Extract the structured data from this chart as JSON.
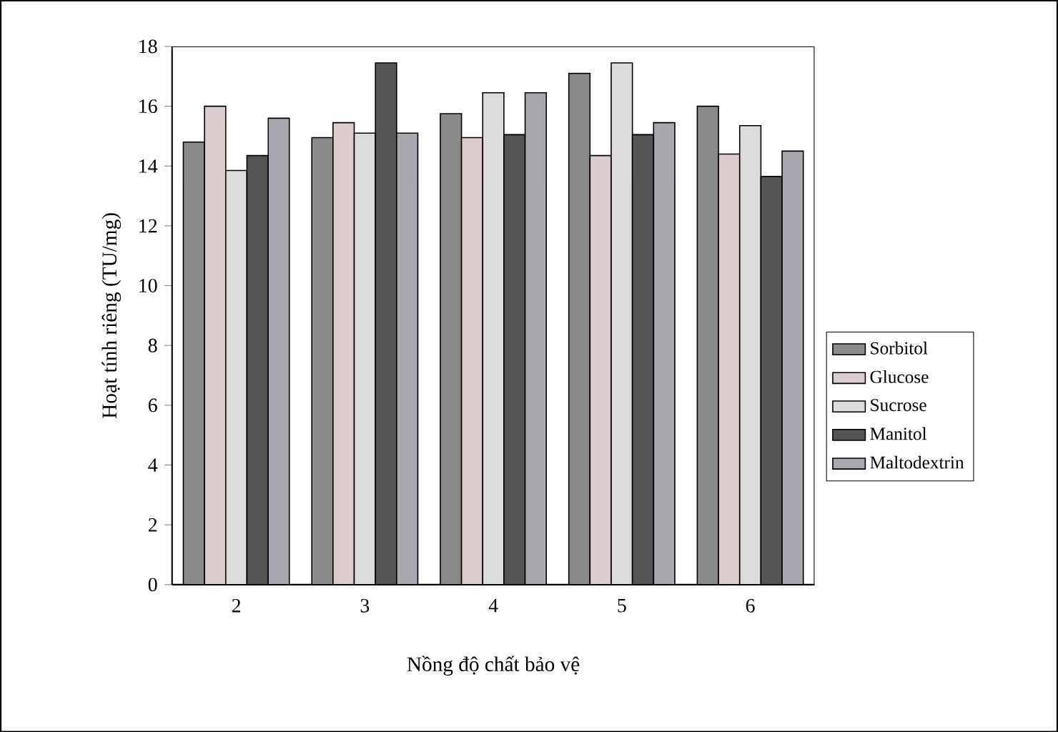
{
  "chart_data": {
    "type": "bar",
    "xlabel": "Nồng độ chất bảo vệ",
    "ylabel": "Hoạt tính riêng  (TU/mg)",
    "categories": [
      "2",
      "3",
      "4",
      "5",
      "6"
    ],
    "series": [
      {
        "name": "Sorbitol",
        "color": "#8a8a8a",
        "values": [
          14.8,
          14.95,
          15.75,
          17.1,
          16.0
        ]
      },
      {
        "name": "Glucose",
        "color": "#dccccc",
        "values": [
          16.0,
          15.45,
          14.95,
          14.35,
          14.4
        ]
      },
      {
        "name": "Sucrose",
        "color": "#dcdcdc",
        "values": [
          13.85,
          15.1,
          16.45,
          17.45,
          15.35
        ]
      },
      {
        "name": "Manitol",
        "color": "#555555",
        "values": [
          14.35,
          17.45,
          15.05,
          15.05,
          13.65
        ]
      },
      {
        "name": "Maltodextrin",
        "color": "#a8a8ae",
        "values": [
          15.6,
          15.1,
          16.45,
          15.45,
          14.5
        ]
      }
    ],
    "ylim": [
      0,
      18
    ],
    "yticks": [
      0,
      2,
      4,
      6,
      8,
      10,
      12,
      14,
      16,
      18
    ],
    "legend": "right"
  }
}
